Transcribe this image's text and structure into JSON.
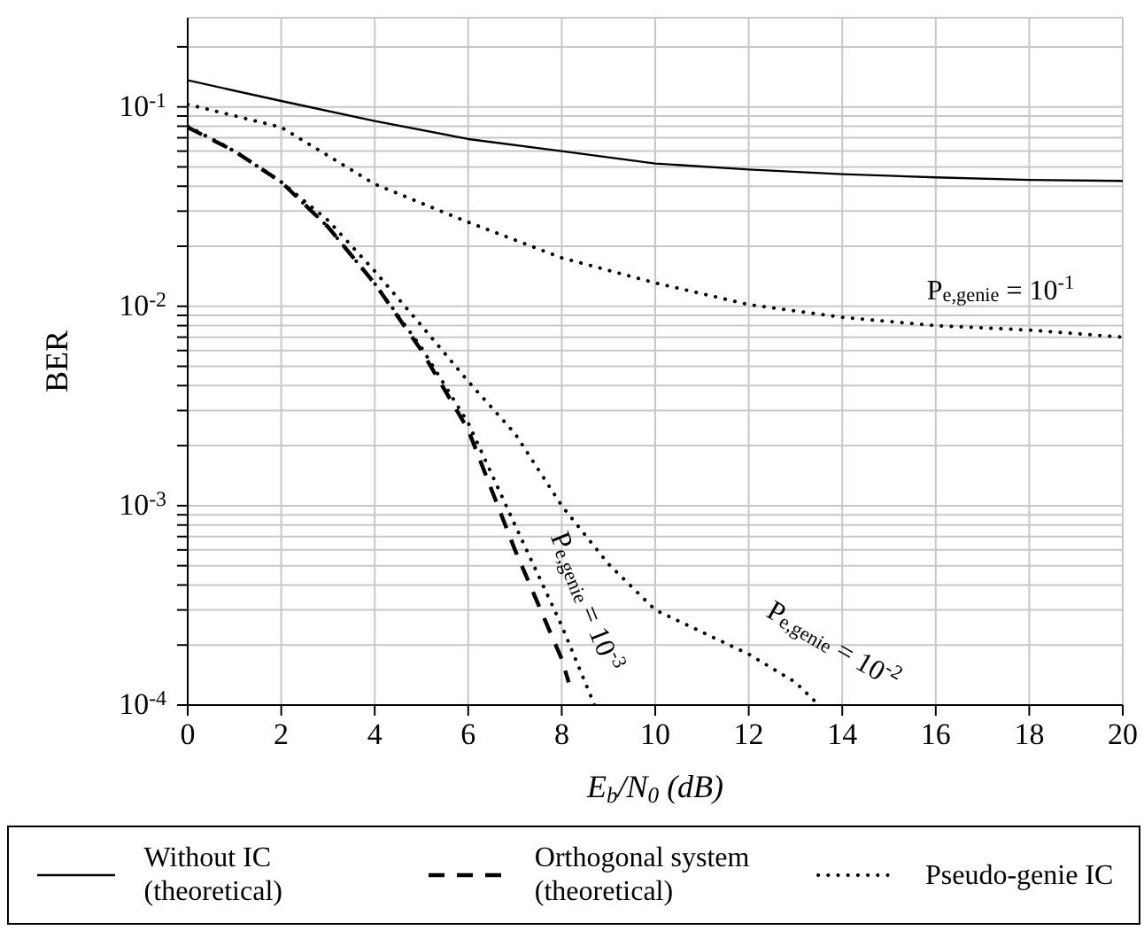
{
  "chart_data": {
    "type": "line",
    "xlabel": "E$_{b}$/N$_{0}$ (dB)",
    "ylabel": "BER",
    "log": "y",
    "grid": true,
    "legend": "bottom",
    "marker": "none",
    "xlim": [
      0,
      20
    ],
    "xticks": [
      0,
      2,
      4,
      6,
      8,
      10,
      12,
      14,
      16,
      18,
      20
    ],
    "ylim": [
      0.0001,
      0.28
    ],
    "yticks": [
      {
        "value": 0.0001,
        "label": "10$^{-4}$"
      },
      {
        "value": 0.0002,
        "label": null
      },
      {
        "value": 0.0003,
        "label": null
      },
      {
        "value": 0.0004,
        "label": null
      },
      {
        "value": 0.0005,
        "label": null
      },
      {
        "value": 0.0006,
        "label": null
      },
      {
        "value": 0.0007,
        "label": null
      },
      {
        "value": 0.0008,
        "label": null
      },
      {
        "value": 0.0009,
        "label": null
      },
      {
        "value": 0.001,
        "label": "10$^{-3}$"
      },
      {
        "value": 0.002,
        "label": null
      },
      {
        "value": 0.003,
        "label": null
      },
      {
        "value": 0.004,
        "label": null
      },
      {
        "value": 0.005,
        "label": null
      },
      {
        "value": 0.006,
        "label": null
      },
      {
        "value": 0.007,
        "label": null
      },
      {
        "value": 0.008,
        "label": null
      },
      {
        "value": 0.009,
        "label": null
      },
      {
        "value": 0.01,
        "label": "10$^{-2}$"
      },
      {
        "value": 0.02,
        "label": null
      },
      {
        "value": 0.03,
        "label": null
      },
      {
        "value": 0.04,
        "label": null
      },
      {
        "value": 0.05,
        "label": null
      },
      {
        "value": 0.06,
        "label": null
      },
      {
        "value": 0.07,
        "label": null
      },
      {
        "value": 0.08,
        "label": null
      },
      {
        "value": 0.09,
        "label": null
      },
      {
        "value": 0.1,
        "label": "10$^{-1}$"
      },
      {
        "value": 0.2,
        "label": null
      }
    ],
    "series": [
      {
        "name": "Without IC (theoretical)",
        "color": "#000000",
        "line_style": "solid",
        "x": [
          0,
          2,
          4,
          6,
          8,
          10,
          12,
          14,
          16,
          18,
          20
        ],
        "values": [
          0.136,
          0.107,
          0.085,
          0.069,
          0.06,
          0.052,
          0.0485,
          0.046,
          0.0443,
          0.043,
          0.0425
        ]
      },
      {
        "name": "Orthogonal system (theoretical)",
        "color": "#000000",
        "line_style": "dashed",
        "x": [
          0,
          1,
          2,
          3,
          4,
          5,
          6,
          7,
          8,
          8.15
        ],
        "values": [
          0.079,
          0.06,
          0.042,
          0.025,
          0.013,
          0.006,
          0.0024,
          0.0006,
          0.00017,
          0.00013
        ]
      },
      {
        "name": "Pseudo-genie IC",
        "color": "#000000",
        "line_style": "dotted",
        "x": [
          0,
          2,
          4,
          6,
          8,
          10,
          12,
          14,
          16,
          18,
          20
        ],
        "values": [
          0.103,
          0.079,
          0.041,
          0.0264,
          0.0175,
          0.0131,
          0.0102,
          0.0088,
          0.008,
          0.0076,
          0.007
        ]
      },
      {
        "color": "#000000",
        "line_style": "dotted",
        "x": [
          0,
          1,
          2,
          3,
          4,
          5,
          6,
          7,
          8,
          9,
          10,
          12,
          13,
          13.5
        ],
        "values": [
          0.08,
          0.06,
          0.042,
          0.027,
          0.015,
          0.008,
          0.0042,
          0.0023,
          0.001,
          0.00051,
          0.0003,
          0.00018,
          0.00013,
          0.0001
        ]
      },
      {
        "color": "#000000",
        "line_style": "dotted",
        "x": [
          0,
          1,
          2,
          3,
          4,
          5,
          6,
          7,
          8,
          8.7
        ],
        "values": [
          0.08,
          0.06,
          0.042,
          0.025,
          0.013,
          0.0062,
          0.0026,
          0.0008,
          0.00025,
          0.0001
        ]
      }
    ],
    "annotations": [
      "P$_{e,genie}$ = 10$^{-1}$",
      "P$_{e,genie}$ = 10$^{-3}$",
      "P$_{e,genie}$ = 10$^{-2}$"
    ]
  }
}
